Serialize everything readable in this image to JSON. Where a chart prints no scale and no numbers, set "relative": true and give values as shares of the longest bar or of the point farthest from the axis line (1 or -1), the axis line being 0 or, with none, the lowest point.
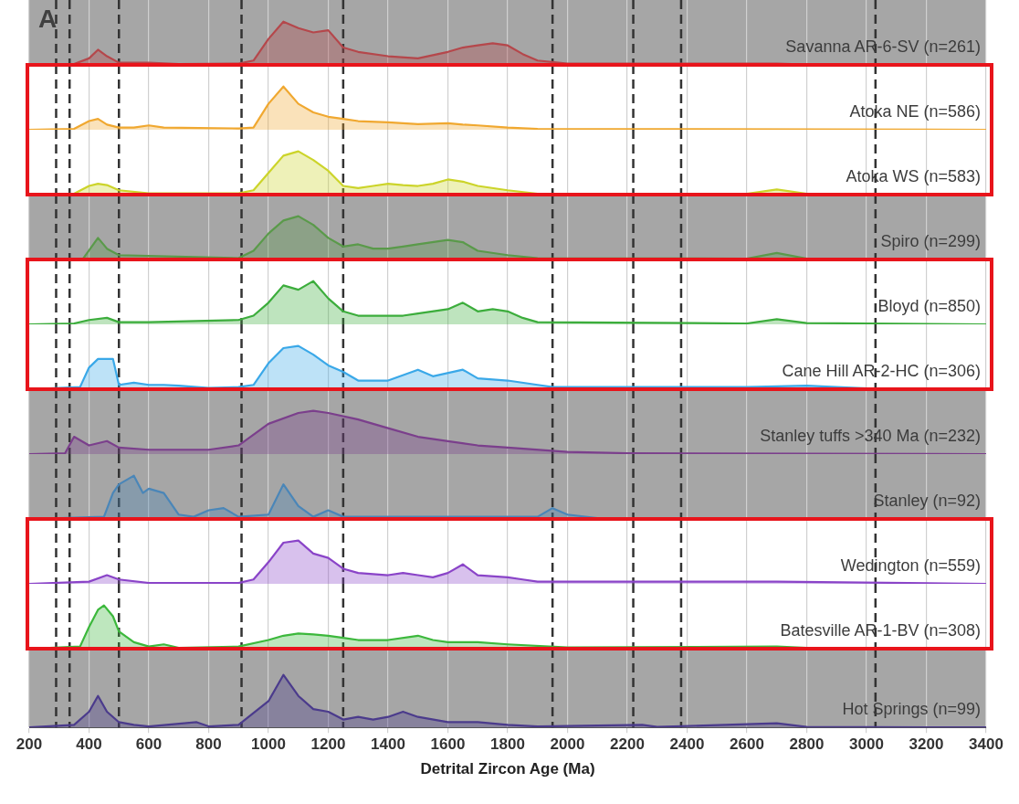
{
  "chart_data": [
    {
      "type": "area",
      "annotations": [
        "A"
      ],
      "relative": true,
      "xlim": [
        200,
        3400
      ],
      "xticks": [
        200,
        400,
        600,
        800,
        1000,
        1200,
        1400,
        1600,
        1800,
        2000,
        2200,
        2400,
        2600,
        2800,
        3000,
        3200,
        3400
      ],
      "grid": "x",
      "tick_labels": false,
      "bands": [
        {
          "axis": "x",
          "from": 200,
          "to": 3400,
          "color": "#a6a6a6"
        }
      ],
      "ref_lines": [
        {
          "axis": "x",
          "value": 290,
          "line_style": "dashed",
          "color": "#333333"
        },
        {
          "axis": "x",
          "value": 335,
          "line_style": "dashed",
          "color": "#333333"
        },
        {
          "axis": "x",
          "value": 500,
          "line_style": "dashed",
          "color": "#333333"
        },
        {
          "axis": "x",
          "value": 910,
          "line_style": "dashed",
          "color": "#333333"
        },
        {
          "axis": "x",
          "value": 1250,
          "line_style": "dashed",
          "color": "#333333"
        },
        {
          "axis": "x",
          "value": 1950,
          "line_style": "dashed",
          "color": "#333333"
        },
        {
          "axis": "x",
          "value": 2220,
          "line_style": "dashed",
          "color": "#333333"
        },
        {
          "axis": "x",
          "value": 2380,
          "line_style": "dashed",
          "color": "#333333"
        },
        {
          "axis": "x",
          "value": 3030,
          "line_style": "dashed",
          "color": "#333333"
        }
      ],
      "x": [
        200,
        350,
        400,
        430,
        460,
        500,
        600,
        700,
        900,
        950,
        1000,
        1050,
        1100,
        1150,
        1200,
        1250,
        1300,
        1400,
        1500,
        1600,
        1650,
        1700,
        1750,
        1800,
        1850,
        1900,
        2000,
        2700,
        2800,
        3400
      ],
      "series": [
        {
          "name": "Savanna AR-6-SV (n=261)",
          "color": "#b5474b",
          "values": [
            0,
            0.02,
            0.15,
            0.35,
            0.2,
            0.05,
            0.05,
            0.02,
            0.03,
            0.1,
            0.6,
            1,
            0.85,
            0.75,
            0.8,
            0.4,
            0.3,
            0.2,
            0.15,
            0.3,
            0.4,
            0.45,
            0.5,
            0.45,
            0.25,
            0.1,
            0.03,
            0.03,
            0.01,
            0
          ]
        }
      ]
    },
    {
      "type": "area",
      "relative": true,
      "xlim": [
        200,
        3400
      ],
      "xticks": [
        200,
        400,
        600,
        800,
        1000,
        1200,
        1400,
        1600,
        1800,
        2000,
        2200,
        2400,
        2600,
        2800,
        3000,
        3200,
        3400
      ],
      "grid": "x",
      "tick_labels": false,
      "ref_lines": [
        {
          "axis": "x",
          "value": 290,
          "line_style": "dashed",
          "color": "#333333"
        },
        {
          "axis": "x",
          "value": 335,
          "line_style": "dashed",
          "color": "#333333"
        },
        {
          "axis": "x",
          "value": 500,
          "line_style": "dashed",
          "color": "#333333"
        },
        {
          "axis": "x",
          "value": 910,
          "line_style": "dashed",
          "color": "#333333"
        },
        {
          "axis": "x",
          "value": 1250,
          "line_style": "dashed",
          "color": "#333333"
        },
        {
          "axis": "x",
          "value": 1950,
          "line_style": "dashed",
          "color": "#333333"
        },
        {
          "axis": "x",
          "value": 2220,
          "line_style": "dashed",
          "color": "#333333"
        },
        {
          "axis": "x",
          "value": 2380,
          "line_style": "dashed",
          "color": "#333333"
        },
        {
          "axis": "x",
          "value": 3030,
          "line_style": "dashed",
          "color": "#333333"
        }
      ],
      "x": [
        200,
        350,
        400,
        430,
        460,
        500,
        550,
        600,
        650,
        900,
        950,
        1000,
        1050,
        1100,
        1150,
        1200,
        1250,
        1300,
        1400,
        1500,
        1600,
        1650,
        1700,
        1800,
        1900,
        3400
      ],
      "series": [
        {
          "name": "Atoka NE (n=586)",
          "color": "#f0a830",
          "values": [
            0,
            0.02,
            0.2,
            0.25,
            0.12,
            0.05,
            0.05,
            0.1,
            0.05,
            0.03,
            0.05,
            0.6,
            1,
            0.6,
            0.4,
            0.3,
            0.25,
            0.2,
            0.17,
            0.13,
            0.15,
            0.12,
            0.1,
            0.05,
            0.02,
            0
          ]
        }
      ]
    },
    {
      "type": "area",
      "relative": true,
      "xlim": [
        200,
        3400
      ],
      "xticks": [
        200,
        400,
        600,
        800,
        1000,
        1200,
        1400,
        1600,
        1800,
        2000,
        2200,
        2400,
        2600,
        2800,
        3000,
        3200,
        3400
      ],
      "grid": "x",
      "tick_labels": false,
      "ref_lines": [
        {
          "axis": "x",
          "value": 290,
          "line_style": "dashed",
          "color": "#333333"
        },
        {
          "axis": "x",
          "value": 335,
          "line_style": "dashed",
          "color": "#333333"
        },
        {
          "axis": "x",
          "value": 500,
          "line_style": "dashed",
          "color": "#333333"
        },
        {
          "axis": "x",
          "value": 910,
          "line_style": "dashed",
          "color": "#333333"
        },
        {
          "axis": "x",
          "value": 1250,
          "line_style": "dashed",
          "color": "#333333"
        },
        {
          "axis": "x",
          "value": 1950,
          "line_style": "dashed",
          "color": "#333333"
        },
        {
          "axis": "x",
          "value": 2220,
          "line_style": "dashed",
          "color": "#333333"
        },
        {
          "axis": "x",
          "value": 2380,
          "line_style": "dashed",
          "color": "#333333"
        },
        {
          "axis": "x",
          "value": 3030,
          "line_style": "dashed",
          "color": "#333333"
        }
      ],
      "x": [
        200,
        350,
        400,
        430,
        460,
        500,
        600,
        900,
        950,
        1000,
        1050,
        1100,
        1150,
        1200,
        1250,
        1300,
        1350,
        1400,
        1450,
        1500,
        1550,
        1600,
        1650,
        1700,
        1800,
        1900,
        2600,
        2700,
        2800,
        3400
      ],
      "series": [
        {
          "name": "Atoka WS (n=583)",
          "color": "#ccd42a",
          "values": [
            0,
            0.02,
            0.2,
            0.25,
            0.22,
            0.1,
            0.03,
            0.03,
            0.1,
            0.5,
            0.9,
            1,
            0.8,
            0.55,
            0.2,
            0.15,
            0.2,
            0.25,
            0.22,
            0.2,
            0.25,
            0.35,
            0.3,
            0.2,
            0.1,
            0.02,
            0.02,
            0.12,
            0.02,
            0
          ]
        }
      ]
    },
    {
      "type": "area",
      "relative": true,
      "xlim": [
        200,
        3400
      ],
      "xticks": [
        200,
        400,
        600,
        800,
        1000,
        1200,
        1400,
        1600,
        1800,
        2000,
        2200,
        2400,
        2600,
        2800,
        3000,
        3200,
        3400
      ],
      "grid": "x",
      "tick_labels": false,
      "bands": [
        {
          "axis": "x",
          "from": 200,
          "to": 3400,
          "color": "#a6a6a6"
        }
      ],
      "ref_lines": [
        {
          "axis": "x",
          "value": 290,
          "line_style": "dashed",
          "color": "#333333"
        },
        {
          "axis": "x",
          "value": 335,
          "line_style": "dashed",
          "color": "#333333"
        },
        {
          "axis": "x",
          "value": 500,
          "line_style": "dashed",
          "color": "#333333"
        },
        {
          "axis": "x",
          "value": 910,
          "line_style": "dashed",
          "color": "#333333"
        },
        {
          "axis": "x",
          "value": 1250,
          "line_style": "dashed",
          "color": "#333333"
        },
        {
          "axis": "x",
          "value": 1950,
          "line_style": "dashed",
          "color": "#333333"
        },
        {
          "axis": "x",
          "value": 2220,
          "line_style": "dashed",
          "color": "#333333"
        },
        {
          "axis": "x",
          "value": 2380,
          "line_style": "dashed",
          "color": "#333333"
        },
        {
          "axis": "x",
          "value": 3030,
          "line_style": "dashed",
          "color": "#333333"
        }
      ],
      "x": [
        200,
        380,
        430,
        460,
        500,
        900,
        950,
        1000,
        1050,
        1100,
        1150,
        1200,
        1250,
        1300,
        1350,
        1400,
        1450,
        1500,
        1600,
        1650,
        1700,
        1800,
        1900,
        2600,
        2700,
        2800,
        3400
      ],
      "series": [
        {
          "name": "Spiro (n=299)",
          "color": "#5a9a4a",
          "values": [
            0,
            0.02,
            0.5,
            0.25,
            0.1,
            0.03,
            0.2,
            0.6,
            0.9,
            1,
            0.8,
            0.5,
            0.3,
            0.35,
            0.25,
            0.25,
            0.3,
            0.35,
            0.45,
            0.4,
            0.2,
            0.1,
            0.03,
            0.02,
            0.15,
            0.02,
            0
          ]
        }
      ]
    },
    {
      "type": "area",
      "relative": true,
      "xlim": [
        200,
        3400
      ],
      "xticks": [
        200,
        400,
        600,
        800,
        1000,
        1200,
        1400,
        1600,
        1800,
        2000,
        2200,
        2400,
        2600,
        2800,
        3000,
        3200,
        3400
      ],
      "grid": "x",
      "tick_labels": false,
      "ref_lines": [
        {
          "axis": "x",
          "value": 290,
          "line_style": "dashed",
          "color": "#333333"
        },
        {
          "axis": "x",
          "value": 335,
          "line_style": "dashed",
          "color": "#333333"
        },
        {
          "axis": "x",
          "value": 500,
          "line_style": "dashed",
          "color": "#333333"
        },
        {
          "axis": "x",
          "value": 910,
          "line_style": "dashed",
          "color": "#333333"
        },
        {
          "axis": "x",
          "value": 1250,
          "line_style": "dashed",
          "color": "#333333"
        },
        {
          "axis": "x",
          "value": 1950,
          "line_style": "dashed",
          "color": "#333333"
        },
        {
          "axis": "x",
          "value": 2220,
          "line_style": "dashed",
          "color": "#333333"
        },
        {
          "axis": "x",
          "value": 2380,
          "line_style": "dashed",
          "color": "#333333"
        },
        {
          "axis": "x",
          "value": 3030,
          "line_style": "dashed",
          "color": "#333333"
        }
      ],
      "x": [
        200,
        350,
        400,
        460,
        500,
        600,
        900,
        950,
        1000,
        1050,
        1100,
        1150,
        1200,
        1250,
        1300,
        1400,
        1450,
        1500,
        1600,
        1650,
        1700,
        1750,
        1800,
        1850,
        1900,
        2600,
        2700,
        2800,
        3400
      ],
      "series": [
        {
          "name": "Bloyd (n=850)",
          "color": "#3cad3c",
          "values": [
            0,
            0.02,
            0.1,
            0.15,
            0.05,
            0.05,
            0.1,
            0.2,
            0.5,
            0.9,
            0.8,
            1,
            0.6,
            0.3,
            0.2,
            0.2,
            0.2,
            0.25,
            0.35,
            0.5,
            0.3,
            0.35,
            0.3,
            0.15,
            0.05,
            0.02,
            0.12,
            0.03,
            0
          ]
        }
      ]
    },
    {
      "type": "area",
      "relative": true,
      "xlim": [
        200,
        3400
      ],
      "xticks": [
        200,
        400,
        600,
        800,
        1000,
        1200,
        1400,
        1600,
        1800,
        2000,
        2200,
        2400,
        2600,
        2800,
        3000,
        3200,
        3400
      ],
      "grid": "x",
      "tick_labels": false,
      "ref_lines": [
        {
          "axis": "x",
          "value": 290,
          "line_style": "dashed",
          "color": "#333333"
        },
        {
          "axis": "x",
          "value": 335,
          "line_style": "dashed",
          "color": "#333333"
        },
        {
          "axis": "x",
          "value": 500,
          "line_style": "dashed",
          "color": "#333333"
        },
        {
          "axis": "x",
          "value": 910,
          "line_style": "dashed",
          "color": "#333333"
        },
        {
          "axis": "x",
          "value": 1250,
          "line_style": "dashed",
          "color": "#333333"
        },
        {
          "axis": "x",
          "value": 1950,
          "line_style": "dashed",
          "color": "#333333"
        },
        {
          "axis": "x",
          "value": 2220,
          "line_style": "dashed",
          "color": "#333333"
        },
        {
          "axis": "x",
          "value": 2380,
          "line_style": "dashed",
          "color": "#333333"
        },
        {
          "axis": "x",
          "value": 3030,
          "line_style": "dashed",
          "color": "#333333"
        }
      ],
      "x": [
        200,
        370,
        400,
        430,
        460,
        480,
        500,
        550,
        600,
        650,
        700,
        800,
        900,
        950,
        1000,
        1050,
        1100,
        1150,
        1200,
        1250,
        1300,
        1400,
        1500,
        1550,
        1650,
        1700,
        1800,
        1900,
        1950,
        2600,
        2800,
        3000,
        3400
      ],
      "series": [
        {
          "name": "Cane Hill AR-2-HC (n=306)",
          "color": "#3aa8e8",
          "values": [
            0,
            0.05,
            0.5,
            0.7,
            0.7,
            0.7,
            0.1,
            0.15,
            0.1,
            0.1,
            0.08,
            0.03,
            0.05,
            0.1,
            0.6,
            0.95,
            1,
            0.8,
            0.55,
            0.4,
            0.2,
            0.2,
            0.45,
            0.3,
            0.45,
            0.25,
            0.2,
            0.1,
            0.05,
            0.05,
            0.08,
            0.02,
            0
          ]
        }
      ]
    },
    {
      "type": "area",
      "relative": true,
      "xlim": [
        200,
        3400
      ],
      "xticks": [
        200,
        400,
        600,
        800,
        1000,
        1200,
        1400,
        1600,
        1800,
        2000,
        2200,
        2400,
        2600,
        2800,
        3000,
        3200,
        3400
      ],
      "grid": "x",
      "tick_labels": false,
      "bands": [
        {
          "axis": "x",
          "from": 200,
          "to": 3400,
          "color": "#a6a6a6"
        }
      ],
      "ref_lines": [
        {
          "axis": "x",
          "value": 290,
          "line_style": "dashed",
          "color": "#333333"
        },
        {
          "axis": "x",
          "value": 335,
          "line_style": "dashed",
          "color": "#333333"
        },
        {
          "axis": "x",
          "value": 500,
          "line_style": "dashed",
          "color": "#333333"
        },
        {
          "axis": "x",
          "value": 910,
          "line_style": "dashed",
          "color": "#333333"
        },
        {
          "axis": "x",
          "value": 1250,
          "line_style": "dashed",
          "color": "#333333"
        },
        {
          "axis": "x",
          "value": 1950,
          "line_style": "dashed",
          "color": "#333333"
        },
        {
          "axis": "x",
          "value": 2220,
          "line_style": "dashed",
          "color": "#333333"
        },
        {
          "axis": "x",
          "value": 2380,
          "line_style": "dashed",
          "color": "#333333"
        },
        {
          "axis": "x",
          "value": 3030,
          "line_style": "dashed",
          "color": "#333333"
        }
      ],
      "x": [
        200,
        320,
        350,
        400,
        460,
        500,
        600,
        700,
        800,
        900,
        1000,
        1100,
        1150,
        1200,
        1300,
        1400,
        1500,
        1600,
        1700,
        1800,
        2000,
        2200,
        3400
      ],
      "series": [
        {
          "name": "Stanley tuffs >340 Ma (n=232)",
          "color": "#7b3f8c",
          "values": [
            0,
            0.02,
            0.4,
            0.2,
            0.3,
            0.15,
            0.1,
            0.1,
            0.1,
            0.2,
            0.7,
            0.95,
            1,
            0.95,
            0.8,
            0.6,
            0.4,
            0.3,
            0.2,
            0.15,
            0.05,
            0.02,
            0
          ]
        }
      ]
    },
    {
      "type": "area",
      "relative": true,
      "xlim": [
        200,
        3400
      ],
      "xticks": [
        200,
        400,
        600,
        800,
        1000,
        1200,
        1400,
        1600,
        1800,
        2000,
        2200,
        2400,
        2600,
        2800,
        3000,
        3200,
        3400
      ],
      "grid": "x",
      "tick_labels": false,
      "bands": [
        {
          "axis": "x",
          "from": 200,
          "to": 3400,
          "color": "#a6a6a6"
        }
      ],
      "ref_lines": [
        {
          "axis": "x",
          "value": 290,
          "line_style": "dashed",
          "color": "#333333"
        },
        {
          "axis": "x",
          "value": 335,
          "line_style": "dashed",
          "color": "#333333"
        },
        {
          "axis": "x",
          "value": 500,
          "line_style": "dashed",
          "color": "#333333"
        },
        {
          "axis": "x",
          "value": 910,
          "line_style": "dashed",
          "color": "#333333"
        },
        {
          "axis": "x",
          "value": 1250,
          "line_style": "dashed",
          "color": "#333333"
        },
        {
          "axis": "x",
          "value": 1950,
          "line_style": "dashed",
          "color": "#333333"
        },
        {
          "axis": "x",
          "value": 2220,
          "line_style": "dashed",
          "color": "#333333"
        },
        {
          "axis": "x",
          "value": 2380,
          "line_style": "dashed",
          "color": "#333333"
        },
        {
          "axis": "x",
          "value": 3030,
          "line_style": "dashed",
          "color": "#333333"
        }
      ],
      "x": [
        200,
        450,
        480,
        500,
        550,
        580,
        600,
        650,
        700,
        750,
        800,
        850,
        900,
        1000,
        1050,
        1100,
        1150,
        1200,
        1250,
        1900,
        1950,
        2000,
        2100,
        3400
      ],
      "series": [
        {
          "name": "Stanley (n=92)",
          "color": "#4a86b8",
          "values": [
            0,
            0.05,
            0.6,
            0.8,
            1,
            0.6,
            0.7,
            0.6,
            0.1,
            0.05,
            0.2,
            0.25,
            0.05,
            0.1,
            0.8,
            0.3,
            0.05,
            0.2,
            0.05,
            0.05,
            0.25,
            0.1,
            0.02,
            0
          ]
        }
      ]
    },
    {
      "type": "area",
      "relative": true,
      "xlim": [
        200,
        3400
      ],
      "xticks": [
        200,
        400,
        600,
        800,
        1000,
        1200,
        1400,
        1600,
        1800,
        2000,
        2200,
        2400,
        2600,
        2800,
        3000,
        3200,
        3400
      ],
      "grid": "x",
      "tick_labels": false,
      "ref_lines": [
        {
          "axis": "x",
          "value": 290,
          "line_style": "dashed",
          "color": "#333333"
        },
        {
          "axis": "x",
          "value": 335,
          "line_style": "dashed",
          "color": "#333333"
        },
        {
          "axis": "x",
          "value": 500,
          "line_style": "dashed",
          "color": "#333333"
        },
        {
          "axis": "x",
          "value": 910,
          "line_style": "dashed",
          "color": "#333333"
        },
        {
          "axis": "x",
          "value": 1250,
          "line_style": "dashed",
          "color": "#333333"
        },
        {
          "axis": "x",
          "value": 1950,
          "line_style": "dashed",
          "color": "#333333"
        },
        {
          "axis": "x",
          "value": 2220,
          "line_style": "dashed",
          "color": "#333333"
        },
        {
          "axis": "x",
          "value": 2380,
          "line_style": "dashed",
          "color": "#333333"
        },
        {
          "axis": "x",
          "value": 3030,
          "line_style": "dashed",
          "color": "#333333"
        }
      ],
      "x": [
        200,
        400,
        460,
        500,
        600,
        900,
        950,
        1000,
        1050,
        1100,
        1150,
        1200,
        1250,
        1300,
        1400,
        1450,
        1500,
        1550,
        1600,
        1650,
        1700,
        1800,
        1850,
        1900,
        2700,
        3400
      ],
      "series": [
        {
          "name": "Wedington (n=559)",
          "color": "#8a44c8",
          "values": [
            0,
            0.05,
            0.2,
            0.1,
            0.02,
            0.02,
            0.1,
            0.5,
            0.95,
            1,
            0.7,
            0.6,
            0.35,
            0.25,
            0.2,
            0.25,
            0.2,
            0.15,
            0.25,
            0.45,
            0.2,
            0.15,
            0.1,
            0.05,
            0.05,
            0
          ]
        }
      ]
    },
    {
      "type": "area",
      "relative": true,
      "xlim": [
        200,
        3400
      ],
      "xticks": [
        200,
        400,
        600,
        800,
        1000,
        1200,
        1400,
        1600,
        1800,
        2000,
        2200,
        2400,
        2600,
        2800,
        3000,
        3200,
        3400
      ],
      "grid": "x",
      "tick_labels": false,
      "ref_lines": [
        {
          "axis": "x",
          "value": 290,
          "line_style": "dashed",
          "color": "#333333"
        },
        {
          "axis": "x",
          "value": 335,
          "line_style": "dashed",
          "color": "#333333"
        },
        {
          "axis": "x",
          "value": 500,
          "line_style": "dashed",
          "color": "#333333"
        },
        {
          "axis": "x",
          "value": 910,
          "line_style": "dashed",
          "color": "#333333"
        },
        {
          "axis": "x",
          "value": 1250,
          "line_style": "dashed",
          "color": "#333333"
        },
        {
          "axis": "x",
          "value": 1950,
          "line_style": "dashed",
          "color": "#333333"
        },
        {
          "axis": "x",
          "value": 2220,
          "line_style": "dashed",
          "color": "#333333"
        },
        {
          "axis": "x",
          "value": 2380,
          "line_style": "dashed",
          "color": "#333333"
        },
        {
          "axis": "x",
          "value": 3030,
          "line_style": "dashed",
          "color": "#333333"
        }
      ],
      "x": [
        200,
        370,
        400,
        430,
        450,
        480,
        500,
        550,
        600,
        650,
        700,
        900,
        1000,
        1050,
        1100,
        1150,
        1200,
        1250,
        1300,
        1400,
        1500,
        1550,
        1600,
        1700,
        1800,
        2000,
        2700,
        2800,
        3400
      ],
      "series": [
        {
          "name": "Batesville AR-1-BV (n=308)",
          "color": "#3cb83c",
          "values": [
            0,
            0.05,
            0.5,
            0.9,
            1,
            0.75,
            0.4,
            0.15,
            0.05,
            0.1,
            0.02,
            0.05,
            0.2,
            0.3,
            0.35,
            0.33,
            0.3,
            0.25,
            0.2,
            0.2,
            0.3,
            0.2,
            0.15,
            0.15,
            0.1,
            0.03,
            0.05,
            0.02,
            0
          ]
        }
      ]
    },
    {
      "type": "area",
      "relative": true,
      "xlabel": "Detrital Zircon Age (Ma)",
      "xlim": [
        200,
        3400
      ],
      "xticks": [
        200,
        400,
        600,
        800,
        1000,
        1200,
        1400,
        1600,
        1800,
        2000,
        2200,
        2400,
        2600,
        2800,
        3000,
        3200,
        3400
      ],
      "grid": "x",
      "tick_labels": "x",
      "bands": [
        {
          "axis": "x",
          "from": 200,
          "to": 3400,
          "color": "#a6a6a6"
        }
      ],
      "ref_lines": [
        {
          "axis": "x",
          "value": 290,
          "line_style": "dashed",
          "color": "#333333"
        },
        {
          "axis": "x",
          "value": 335,
          "line_style": "dashed",
          "color": "#333333"
        },
        {
          "axis": "x",
          "value": 500,
          "line_style": "dashed",
          "color": "#333333"
        },
        {
          "axis": "x",
          "value": 910,
          "line_style": "dashed",
          "color": "#333333"
        },
        {
          "axis": "x",
          "value": 1250,
          "line_style": "dashed",
          "color": "#333333"
        },
        {
          "axis": "x",
          "value": 1950,
          "line_style": "dashed",
          "color": "#333333"
        },
        {
          "axis": "x",
          "value": 2220,
          "line_style": "dashed",
          "color": "#333333"
        },
        {
          "axis": "x",
          "value": 2380,
          "line_style": "dashed",
          "color": "#333333"
        },
        {
          "axis": "x",
          "value": 3030,
          "line_style": "dashed",
          "color": "#333333"
        }
      ],
      "x": [
        200,
        350,
        400,
        430,
        460,
        500,
        550,
        600,
        760,
        800,
        900,
        1000,
        1050,
        1100,
        1150,
        1200,
        1250,
        1300,
        1350,
        1400,
        1450,
        1500,
        1600,
        1700,
        1800,
        1900,
        2250,
        2300,
        2700,
        2800,
        3400
      ],
      "series": [
        {
          "name": "Hot Springs (n=99)",
          "color": "#4b3b8c",
          "values": [
            0,
            0.05,
            0.3,
            0.6,
            0.3,
            0.1,
            0.05,
            0.02,
            0.1,
            0.02,
            0.05,
            0.5,
            1,
            0.6,
            0.35,
            0.3,
            0.15,
            0.2,
            0.15,
            0.2,
            0.3,
            0.2,
            0.1,
            0.1,
            0.05,
            0.02,
            0.05,
            0.01,
            0.08,
            0.01,
            0
          ]
        }
      ]
    }
  ]
}
